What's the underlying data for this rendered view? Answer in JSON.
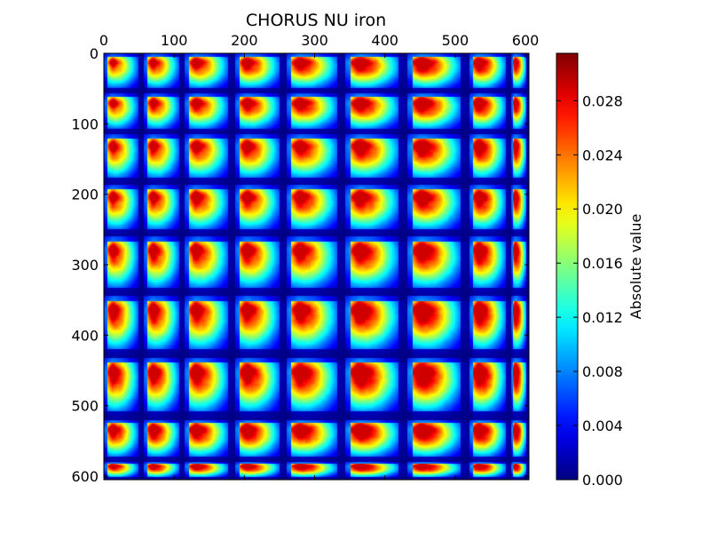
{
  "chart_data": {
    "type": "heatmap",
    "title": "CHORUS NU iron",
    "x_ticks": [
      0,
      100,
      200,
      300,
      400,
      500,
      600
    ],
    "y_ticks": [
      0,
      100,
      200,
      300,
      400,
      500,
      600
    ],
    "x_range": [
      0,
      605
    ],
    "y_range": [
      0,
      605
    ],
    "x_tick_position": "top",
    "colormap": "jet",
    "colorbar": {
      "label": "Absolute value",
      "min": 0.0,
      "max": 0.0315,
      "ticks": [
        0.0,
        0.004,
        0.008,
        0.012,
        0.016,
        0.02,
        0.024,
        0.028
      ],
      "tick_labels": [
        "0.000",
        "0.004",
        "0.008",
        "0.012",
        "0.016",
        "0.020",
        "0.024",
        "0.028"
      ]
    },
    "block_edges": [
      0,
      57,
      115,
      187,
      260,
      344,
      432,
      520,
      580,
      605
    ],
    "block_peak_scale": [
      [
        0.8,
        0.85,
        0.88,
        0.9,
        0.92,
        0.95,
        0.97,
        0.95,
        0.92
      ],
      [
        0.82,
        0.86,
        0.88,
        0.9,
        0.92,
        0.94,
        0.96,
        0.95,
        0.93
      ],
      [
        0.84,
        0.86,
        0.87,
        0.88,
        0.9,
        0.93,
        0.95,
        0.94,
        0.95
      ],
      [
        0.84,
        0.86,
        0.87,
        0.88,
        0.9,
        0.92,
        0.94,
        0.95,
        0.95
      ],
      [
        0.86,
        0.88,
        0.88,
        0.89,
        0.9,
        0.93,
        0.95,
        0.95,
        0.96
      ],
      [
        0.9,
        0.9,
        0.9,
        0.91,
        0.93,
        0.97,
        0.98,
        0.98,
        0.99
      ],
      [
        0.92,
        0.92,
        0.93,
        0.94,
        0.95,
        0.99,
        1.0,
        0.99,
        1.0
      ],
      [
        0.92,
        0.94,
        0.95,
        0.96,
        0.97,
        1.0,
        1.0,
        0.99,
        1.0
      ],
      [
        0.9,
        0.93,
        0.94,
        0.95,
        0.96,
        0.98,
        0.98,
        0.97,
        0.97
      ]
    ]
  }
}
